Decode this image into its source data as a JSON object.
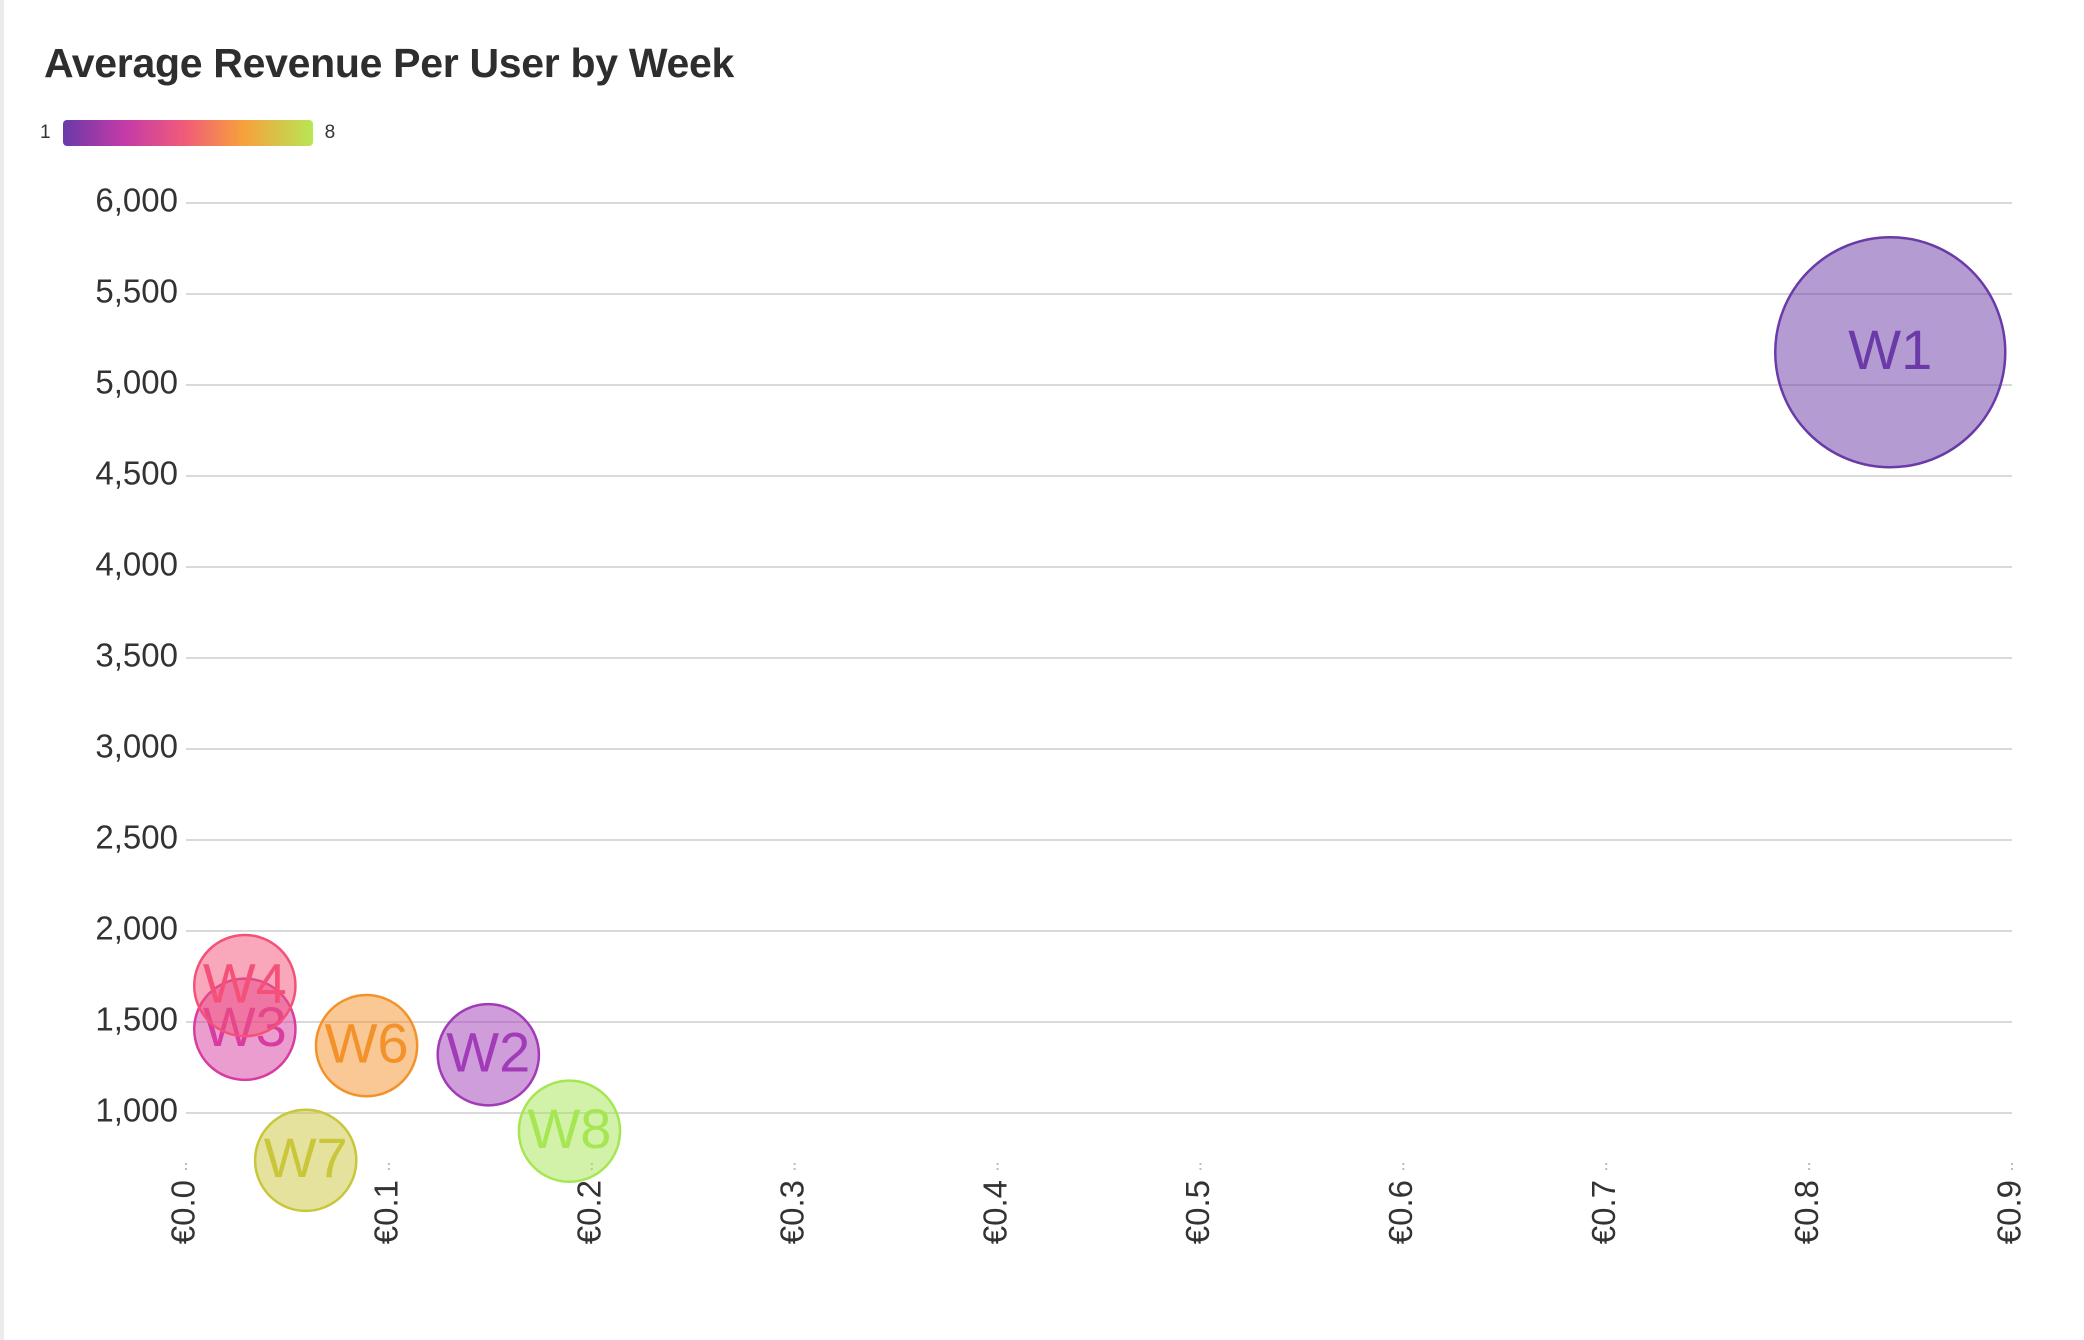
{
  "chart_data": {
    "type": "scatter",
    "title": "Average Revenue Per User by Week",
    "xlabel": "",
    "ylabel": "",
    "x_ticks": [
      "€0.0",
      "€0.1",
      "€0.2",
      "€0.3",
      "€0.4",
      "€0.5",
      "€0.6",
      "€0.7",
      "€0.8",
      "€0.9"
    ],
    "y_ticks": [
      "1,000",
      "1,500",
      "2,000",
      "2,500",
      "3,000",
      "3,500",
      "4,000",
      "4,500",
      "5,000",
      "5,500",
      "6,000"
    ],
    "xlim": [
      0,
      0.9
    ],
    "ylim": [
      800,
      6000
    ],
    "grid": true,
    "color_legend": {
      "min_label": "1",
      "max_label": "8",
      "position": "top-left"
    },
    "points": [
      {
        "label": "W1",
        "week": 1,
        "x": 0.84,
        "y": 5180,
        "size": 1.0,
        "color": "#6a3aa8"
      },
      {
        "label": "W2",
        "week": 2,
        "x": 0.149,
        "y": 1320,
        "size": 0.44,
        "color": "#a23bb8"
      },
      {
        "label": "W3",
        "week": 3,
        "x": 0.029,
        "y": 1460,
        "size": 0.44,
        "color": "#d83ca0"
      },
      {
        "label": "W4",
        "week": 4,
        "x": 0.029,
        "y": 1700,
        "size": 0.44,
        "color": "#f45078"
      },
      {
        "label": "W6",
        "week": 6,
        "x": 0.089,
        "y": 1370,
        "size": 0.44,
        "color": "#f3922a"
      },
      {
        "label": "W7",
        "week": 7,
        "x": 0.059,
        "y": 740,
        "size": 0.44,
        "color": "#c9c63a"
      },
      {
        "label": "W8",
        "week": 8,
        "x": 0.189,
        "y": 900,
        "size": 0.44,
        "color": "#a6e653"
      }
    ]
  }
}
